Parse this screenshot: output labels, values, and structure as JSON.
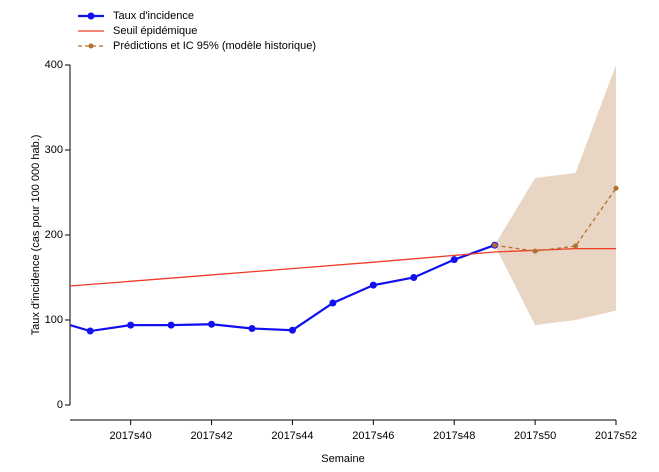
{
  "chart_data": {
    "type": "line",
    "xlabel": "Semaine",
    "ylabel": "Taux d'incidence (cas pour 100 000 hab.)",
    "xlim": [
      38.5,
      52
    ],
    "ylim": [
      0,
      400
    ],
    "xticks": [
      {
        "value": 40,
        "label": "2017s40"
      },
      {
        "value": 42,
        "label": "2017s42"
      },
      {
        "value": 44,
        "label": "2017s44"
      },
      {
        "value": 46,
        "label": "2017s46"
      },
      {
        "value": 48,
        "label": "2017s48"
      },
      {
        "value": 50,
        "label": "2017s50"
      },
      {
        "value": 52,
        "label": "2017s52"
      }
    ],
    "yticks": [
      0,
      100,
      200,
      300,
      400
    ],
    "series": [
      {
        "name": "Taux d'incidence",
        "color": "#1010f0",
        "style": "solid",
        "markers": true,
        "x": [
          38,
          39,
          40,
          41,
          42,
          43,
          44,
          45,
          46,
          47,
          48,
          49
        ],
        "values": [
          101,
          87,
          94,
          94,
          95,
          90,
          88,
          120,
          141,
          150,
          171,
          188
        ]
      },
      {
        "name": "Seuil épidémique",
        "color": "#f03c28",
        "style": "solid",
        "markers": false,
        "x": [
          38.5,
          42,
          46,
          49,
          50,
          51,
          52
        ],
        "values": [
          140,
          153,
          168,
          180,
          182,
          184,
          184
        ]
      },
      {
        "name": "Prédictions et IC 95% (modèle historique)",
        "color": "#b46e2d",
        "style": "dashed",
        "markers": true,
        "band_color": "#e8d5c3",
        "x": [
          49,
          50,
          51,
          52
        ],
        "values": [
          188,
          181,
          187,
          255
        ],
        "lower": [
          188,
          94,
          100,
          111
        ],
        "upper": [
          188,
          267,
          273,
          400
        ]
      }
    ]
  }
}
